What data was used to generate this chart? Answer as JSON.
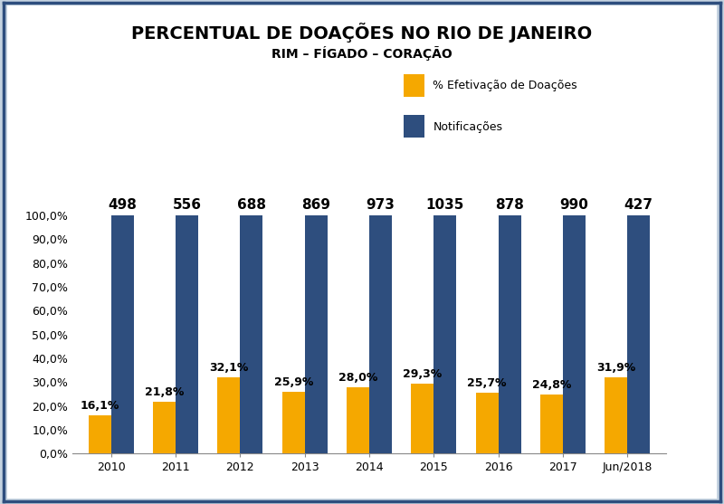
{
  "title": "PERCENTUAL DE DOAÇÕES NO RIO DE JANEIRO",
  "subtitle": "RIM – FÍGADO – CORAÇÃO",
  "categories": [
    "2010",
    "2011",
    "2012",
    "2013",
    "2014",
    "2015",
    "2016",
    "2017",
    "Jun/2018"
  ],
  "notificacoes_values": [
    100.0,
    100.0,
    100.0,
    100.0,
    100.0,
    100.0,
    100.0,
    100.0,
    100.0
  ],
  "notificacoes_labels": [
    "498",
    "556",
    "688",
    "869",
    "973",
    "1035",
    "878",
    "990",
    "427"
  ],
  "doacao_values": [
    16.1,
    21.8,
    32.1,
    25.9,
    28.0,
    29.3,
    25.7,
    24.8,
    31.9
  ],
  "doacao_labels": [
    "16,1%",
    "21,8%",
    "32,1%",
    "25,9%",
    "28,0%",
    "29,3%",
    "25,7%",
    "24,8%",
    "31,9%"
  ],
  "color_notificacoes": "#2E4E7E",
  "color_doacao": "#F5A800",
  "legend_notificacoes": "Notificações",
  "legend_doacao": "% Efetivação de Doações",
  "ylim": [
    0,
    110
  ],
  "yticks": [
    0,
    10,
    20,
    30,
    40,
    50,
    60,
    70,
    80,
    90,
    100
  ],
  "ytick_labels": [
    "0,0%",
    "10,0%",
    "20,0%",
    "30,0%",
    "40,0%",
    "50,0%",
    "60,0%",
    "70,0%",
    "80,0%",
    "90,0%",
    "100,0%"
  ],
  "outer_background_color": "#C5D3E0",
  "inner_background_color": "#FFFFFF",
  "plot_background_color": "#FFFFFF",
  "bar_width": 0.35,
  "title_fontsize": 14,
  "subtitle_fontsize": 10,
  "label_fontsize": 9,
  "tick_fontsize": 9,
  "legend_fontsize": 9,
  "notif_label_fontsize": 11,
  "doacao_label_fontsize": 9
}
